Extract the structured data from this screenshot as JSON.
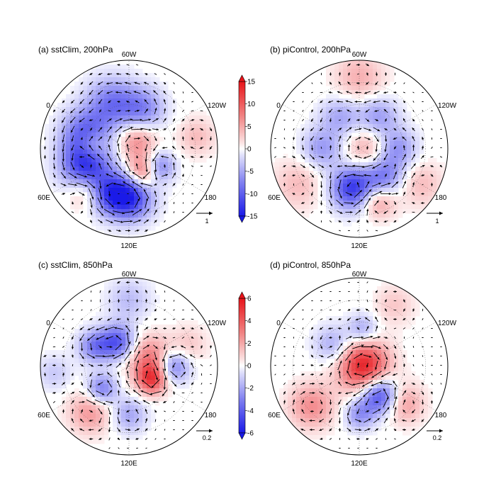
{
  "chart_data": {
    "type": "polar-stereographic-map",
    "colorbars": [
      {
        "ticks": [
          15,
          10,
          5,
          0,
          -5,
          -10,
          -15
        ],
        "range": [
          -15,
          15
        ]
      },
      {
        "ticks": [
          6,
          4,
          2,
          0,
          -2,
          -4,
          -6
        ],
        "range": [
          -6,
          6
        ]
      }
    ],
    "panels": [
      {
        "title": "(a) sstClim, 200hPa",
        "lon_labels": [
          "60W",
          "0",
          "120W",
          "60E",
          "180",
          "120E"
        ],
        "ref_arrow_label": "1",
        "blobs": [
          {
            "r": 0.55,
            "theta": 110,
            "s": 0.2,
            "v": -0.55
          },
          {
            "r": 0.48,
            "theta": 70,
            "s": 0.17,
            "v": -0.45
          },
          {
            "r": 0.52,
            "theta": 160,
            "s": 0.19,
            "v": -0.6
          },
          {
            "r": 0.52,
            "theta": 200,
            "s": 0.2,
            "v": -0.85
          },
          {
            "r": 0.56,
            "theta": 245,
            "s": 0.16,
            "v": -0.55
          },
          {
            "r": 0.55,
            "theta": 270,
            "s": 0.18,
            "v": -0.9
          },
          {
            "r": 0.12,
            "theta": 40,
            "s": 0.15,
            "v": 0.45
          },
          {
            "r": 0.3,
            "theta": 300,
            "s": 0.12,
            "v": 0.6
          },
          {
            "r": 0.42,
            "theta": 175,
            "s": 0.12,
            "v": 0.4
          },
          {
            "r": 0.7,
            "theta": 225,
            "s": 0.14,
            "v": 0.35
          },
          {
            "r": 0.4,
            "theta": 330,
            "s": 0.12,
            "v": -0.5
          },
          {
            "r": 0.78,
            "theta": 10,
            "s": 0.15,
            "v": 0.25
          }
        ]
      },
      {
        "title": "(b) piControl, 200hPa",
        "lon_labels": [
          "60W",
          "0",
          "120W",
          "60E",
          "180",
          "120E"
        ],
        "ref_arrow_label": "1",
        "blobs": [
          {
            "r": 0.42,
            "theta": 0,
            "s": 0.16,
            "v": -0.45
          },
          {
            "r": 0.42,
            "theta": 60,
            "s": 0.16,
            "v": -0.4
          },
          {
            "r": 0.42,
            "theta": 120,
            "s": 0.16,
            "v": -0.35
          },
          {
            "r": 0.42,
            "theta": 180,
            "s": 0.16,
            "v": -0.4
          },
          {
            "r": 0.45,
            "theta": 260,
            "s": 0.17,
            "v": -0.85
          },
          {
            "r": 0.42,
            "theta": 310,
            "s": 0.16,
            "v": -0.55
          },
          {
            "r": 0.1,
            "theta": 0,
            "s": 0.18,
            "v": 0.35
          },
          {
            "r": 0.8,
            "theta": 90,
            "s": 0.2,
            "v": 0.3
          },
          {
            "r": 0.8,
            "theta": 210,
            "s": 0.2,
            "v": 0.25
          },
          {
            "r": 0.62,
            "theta": 290,
            "s": 0.14,
            "v": 0.45
          },
          {
            "r": 0.8,
            "theta": 330,
            "s": 0.18,
            "v": 0.25
          }
        ]
      },
      {
        "title": "(c) sstClim, 850hPa",
        "lon_labels": [
          "60W",
          "0",
          "120W",
          "60E",
          "180",
          "120E"
        ],
        "ref_arrow_label": "0.2",
        "blobs": [
          {
            "r": 0.25,
            "theta": 20,
            "s": 0.18,
            "v": 0.55
          },
          {
            "r": 0.3,
            "theta": 330,
            "s": 0.12,
            "v": 0.7
          },
          {
            "r": 0.3,
            "theta": 115,
            "s": 0.14,
            "v": -0.7
          },
          {
            "r": 0.45,
            "theta": 150,
            "s": 0.13,
            "v": -0.5
          },
          {
            "r": 0.5,
            "theta": 0,
            "s": 0.13,
            "v": -0.6
          },
          {
            "r": 0.4,
            "theta": 220,
            "s": 0.12,
            "v": -0.55
          },
          {
            "r": 0.68,
            "theta": 230,
            "s": 0.17,
            "v": 0.4
          },
          {
            "r": 0.75,
            "theta": 90,
            "s": 0.17,
            "v": -0.25
          },
          {
            "r": 0.72,
            "theta": 20,
            "s": 0.15,
            "v": 0.2
          },
          {
            "r": 0.55,
            "theta": 270,
            "s": 0.14,
            "v": -0.35
          },
          {
            "r": 0.85,
            "theta": 185,
            "s": 0.14,
            "v": -0.2
          }
        ]
      },
      {
        "title": "(d) piControl, 850hPa",
        "lon_labels": [
          "60W",
          "0",
          "120W",
          "60E",
          "180",
          "120E"
        ],
        "ref_arrow_label": "0.2",
        "blobs": [
          {
            "r": 0.05,
            "theta": 0,
            "s": 0.2,
            "v": 0.95
          },
          {
            "r": 0.4,
            "theta": 305,
            "s": 0.15,
            "v": -0.85
          },
          {
            "r": 0.38,
            "theta": 140,
            "s": 0.15,
            "v": -0.35
          },
          {
            "r": 0.42,
            "theta": 85,
            "s": 0.12,
            "v": -0.35
          },
          {
            "r": 0.7,
            "theta": 220,
            "s": 0.18,
            "v": 0.45
          },
          {
            "r": 0.65,
            "theta": 320,
            "s": 0.16,
            "v": 0.4
          },
          {
            "r": 0.8,
            "theta": 60,
            "s": 0.16,
            "v": 0.2
          },
          {
            "r": 0.55,
            "theta": 270,
            "s": 0.12,
            "v": -0.4
          }
        ]
      }
    ]
  }
}
